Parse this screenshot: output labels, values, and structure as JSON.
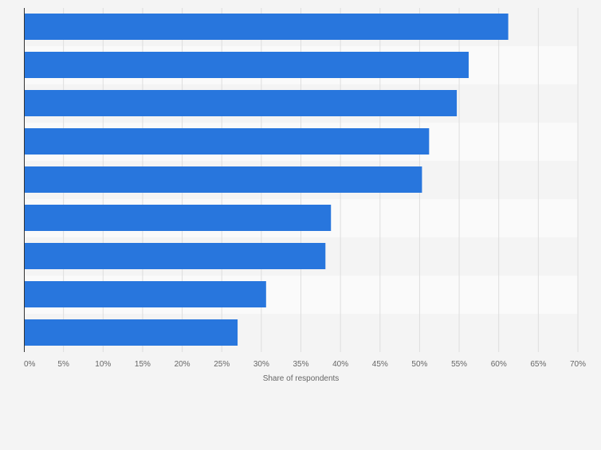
{
  "chart_data": {
    "type": "bar",
    "orientation": "horizontal",
    "categories": [
      "",
      "",
      "",
      "",
      "",
      "",
      "",
      "",
      ""
    ],
    "values": [
      61.2,
      56.2,
      54.7,
      51.2,
      50.3,
      38.8,
      38.1,
      30.6,
      27.0
    ],
    "title": "",
    "xlabel": "Share of respondents",
    "ylabel": "",
    "xlim": [
      0,
      70
    ],
    "ticks": [
      0,
      5,
      10,
      15,
      20,
      25,
      30,
      35,
      40,
      45,
      50,
      55,
      60,
      65,
      70
    ],
    "tick_labels": [
      "0%",
      "5%",
      "10%",
      "15%",
      "20%",
      "25%",
      "30%",
      "35%",
      "40%",
      "45%",
      "50%",
      "55%",
      "60%",
      "65%",
      "70%"
    ],
    "grid": true,
    "legend": "none",
    "colors": {
      "bar": "#2876dd",
      "background": "#f4f4f4",
      "band_light": "#fafafa",
      "band_dark": "#f4f4f4",
      "grid": "#dedede",
      "axis": "#333333",
      "text": "#666666"
    }
  }
}
